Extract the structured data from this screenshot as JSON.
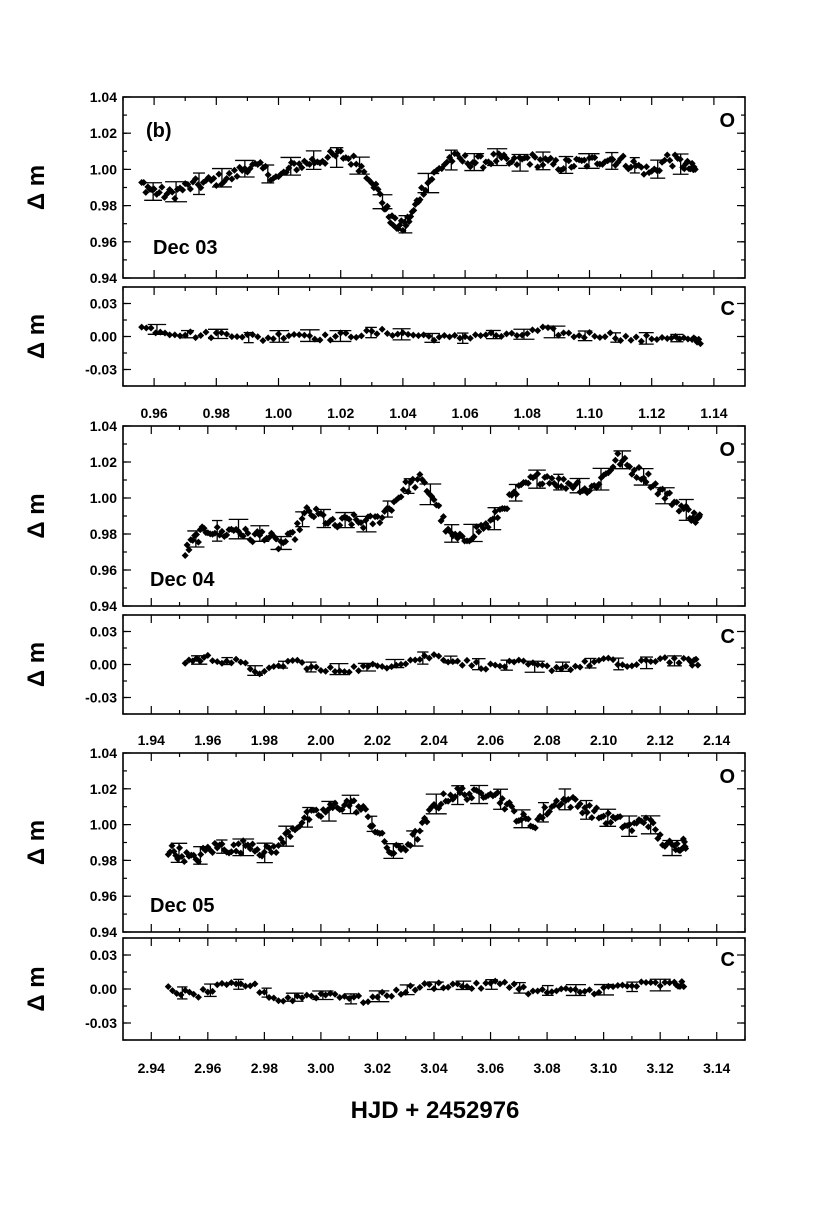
{
  "chart_data": {
    "type": "scatter",
    "figure_xlabel": "HJD + 2452976",
    "ylabel": "Δ m",
    "panels": [
      {
        "night": "Dec 03",
        "panel_tag": "(b)",
        "xlim": [
          0.95,
          1.15
        ],
        "xticks": [
          "0.96",
          "0.98",
          "1.00",
          "1.02",
          "1.04",
          "1.06",
          "1.08",
          "1.10",
          "1.12",
          "1.14"
        ],
        "xtick_values": [
          0.96,
          0.98,
          1.0,
          1.02,
          1.04,
          1.06,
          1.08,
          1.1,
          1.12,
          1.14
        ],
        "O": {
          "label": "O",
          "ylim": [
            0.94,
            1.04
          ],
          "yticks": [
            "0.94",
            "0.96",
            "0.98",
            "1.00",
            "1.02",
            "1.04"
          ],
          "ytick_values": [
            0.94,
            0.96,
            0.98,
            1.0,
            1.02,
            1.04
          ],
          "x": [
            0.956,
            0.96,
            0.965,
            0.97,
            0.975,
            0.98,
            0.985,
            0.99,
            0.995,
            1.0,
            1.005,
            1.01,
            1.015,
            1.02,
            1.025,
            1.03,
            1.034,
            1.037,
            1.04,
            1.043,
            1.046,
            1.05,
            1.055,
            1.06,
            1.065,
            1.07,
            1.075,
            1.08,
            1.085,
            1.09,
            1.095,
            1.1,
            1.105,
            1.11,
            1.115,
            1.12,
            1.125,
            1.13,
            1.133
          ],
          "y": [
            0.992,
            0.988,
            0.986,
            0.99,
            0.992,
            0.994,
            0.996,
            1.002,
            1.0,
            0.995,
            1.002,
            1.004,
            1.006,
            1.008,
            1.004,
            0.995,
            0.98,
            0.97,
            0.968,
            0.975,
            0.988,
            0.997,
            1.006,
            1.005,
            1.004,
            1.006,
            1.003,
            1.006,
            1.004,
            1.002,
            1.003,
            1.004,
            1.006,
            1.005,
            1.002,
            0.998,
            1.006,
            1.003,
            1.0
          ],
          "error_bar_count": 24
        },
        "C": {
          "label": "C",
          "ylim": [
            -0.045,
            0.045
          ],
          "yticks": [
            "-0.03",
            "0.00",
            "0.03"
          ],
          "ytick_values": [
            -0.03,
            0.0,
            0.03
          ],
          "x": [
            0.956,
            0.965,
            0.975,
            0.985,
            0.995,
            1.005,
            1.015,
            1.025,
            1.035,
            1.045,
            1.055,
            1.065,
            1.075,
            1.085,
            1.095,
            1.105,
            1.115,
            1.125,
            1.133
          ],
          "y": [
            0.008,
            0.004,
            0.001,
            0.003,
            -0.002,
            0.003,
            -0.001,
            0.002,
            0.004,
            0.001,
            -0.002,
            0.002,
            0.0,
            0.006,
            0.001,
            0.002,
            -0.003,
            0.0,
            -0.004
          ],
          "error_bar_count": 18
        }
      },
      {
        "night": "Dec 04",
        "panel_tag": "",
        "xlim": [
          1.93,
          2.15
        ],
        "xticks": [
          "1.94",
          "1.96",
          "1.98",
          "2.00",
          "2.02",
          "2.04",
          "2.06",
          "2.08",
          "2.10",
          "2.12",
          "2.14"
        ],
        "xtick_values": [
          1.94,
          1.96,
          1.98,
          2.0,
          2.02,
          2.04,
          2.06,
          2.08,
          2.1,
          2.12,
          2.14
        ],
        "O": {
          "label": "O",
          "ylim": [
            0.94,
            1.04
          ],
          "yticks": [
            "0.94",
            "0.96",
            "0.98",
            "1.00",
            "1.02",
            "1.04"
          ],
          "ytick_values": [
            0.94,
            0.96,
            0.98,
            1.0,
            1.02,
            1.04
          ],
          "x": [
            1.952,
            1.956,
            1.96,
            1.965,
            1.97,
            1.975,
            1.98,
            1.985,
            1.99,
            1.995,
            2.0,
            2.005,
            2.01,
            2.015,
            2.02,
            2.025,
            2.03,
            2.035,
            2.04,
            2.045,
            2.05,
            2.055,
            2.06,
            2.065,
            2.07,
            2.075,
            2.08,
            2.085,
            2.09,
            2.095,
            2.1,
            2.105,
            2.11,
            2.115,
            2.12,
            2.125,
            2.13,
            2.133
          ],
          "y": [
            0.97,
            0.978,
            0.983,
            0.98,
            0.983,
            0.978,
            0.98,
            0.974,
            0.978,
            0.992,
            0.99,
            0.984,
            0.988,
            0.986,
            0.988,
            0.996,
            1.006,
            1.01,
            1.0,
            0.98,
            0.976,
            0.982,
            0.986,
            0.996,
            1.004,
            1.01,
            1.012,
            1.008,
            1.008,
            1.004,
            1.012,
            1.022,
            1.016,
            1.012,
            1.004,
            0.998,
            0.992,
            0.988
          ],
          "error_bar_count": 24
        },
        "C": {
          "label": "C",
          "ylim": [
            -0.045,
            0.045
          ],
          "yticks": [
            "-0.03",
            "0.00",
            "0.03"
          ],
          "ytick_values": [
            -0.03,
            0.0,
            0.03
          ],
          "x": [
            1.952,
            1.96,
            1.97,
            1.98,
            1.99,
            2.0,
            2.01,
            2.02,
            2.03,
            2.04,
            2.05,
            2.06,
            2.07,
            2.08,
            2.09,
            2.1,
            2.11,
            2.12,
            2.13
          ],
          "y": [
            0.003,
            0.006,
            0.002,
            -0.008,
            0.004,
            -0.006,
            -0.004,
            -0.002,
            0.003,
            0.008,
            0.002,
            -0.002,
            0.001,
            -0.003,
            -0.002,
            0.004,
            -0.002,
            0.006,
            0.002
          ],
          "error_bar_count": 18
        }
      },
      {
        "night": "Dec 05",
        "panel_tag": "",
        "xlim": [
          2.93,
          3.15
        ],
        "xticks": [
          "2.94",
          "2.96",
          "2.98",
          "3.00",
          "3.02",
          "3.04",
          "3.06",
          "3.08",
          "3.10",
          "3.12",
          "3.14"
        ],
        "xtick_values": [
          2.94,
          2.96,
          2.98,
          3.0,
          3.02,
          3.04,
          3.06,
          3.08,
          3.1,
          3.12,
          3.14
        ],
        "O": {
          "label": "O",
          "ylim": [
            0.94,
            1.04
          ],
          "yticks": [
            "0.94",
            "0.96",
            "0.98",
            "1.00",
            "1.02",
            "1.04"
          ],
          "ytick_values": [
            0.94,
            0.96,
            0.98,
            1.0,
            1.02,
            1.04
          ],
          "x": [
            2.946,
            2.95,
            2.955,
            2.96,
            2.965,
            2.97,
            2.975,
            2.98,
            2.985,
            2.99,
            2.995,
            3.0,
            3.005,
            3.01,
            3.015,
            3.02,
            3.025,
            3.03,
            3.035,
            3.04,
            3.045,
            3.05,
            3.055,
            3.06,
            3.065,
            3.07,
            3.075,
            3.08,
            3.085,
            3.09,
            3.095,
            3.1,
            3.105,
            3.11,
            3.115,
            3.12,
            3.125,
            3.128
          ],
          "y": [
            0.986,
            0.984,
            0.98,
            0.986,
            0.988,
            0.986,
            0.99,
            0.984,
            0.988,
            0.998,
            1.004,
            1.006,
            1.01,
            1.012,
            1.008,
            0.996,
            0.984,
            0.988,
            0.996,
            1.01,
            1.016,
            1.018,
            1.016,
            1.02,
            1.012,
            1.004,
            1.0,
            1.008,
            1.014,
            1.012,
            1.008,
            1.004,
            1.002,
            0.998,
            1.004,
            0.992,
            0.986,
            0.99
          ],
          "error_bar_count": 24
        },
        "C": {
          "label": "C",
          "ylim": [
            -0.045,
            0.045
          ],
          "yticks": [
            "-0.03",
            "0.00",
            "0.03"
          ],
          "ytick_values": [
            -0.03,
            0.0,
            0.03
          ],
          "x": [
            2.946,
            2.955,
            2.965,
            2.975,
            2.985,
            2.995,
            3.005,
            3.015,
            3.025,
            3.035,
            3.045,
            3.055,
            3.065,
            3.075,
            3.085,
            3.095,
            3.105,
            3.115,
            3.125
          ],
          "y": [
            0.0,
            -0.006,
            0.002,
            0.004,
            -0.01,
            -0.006,
            -0.004,
            -0.01,
            -0.004,
            0.002,
            0.004,
            0.002,
            0.006,
            -0.003,
            -0.002,
            -0.002,
            0.002,
            0.004,
            0.004
          ],
          "error_bar_count": 18
        }
      }
    ]
  }
}
